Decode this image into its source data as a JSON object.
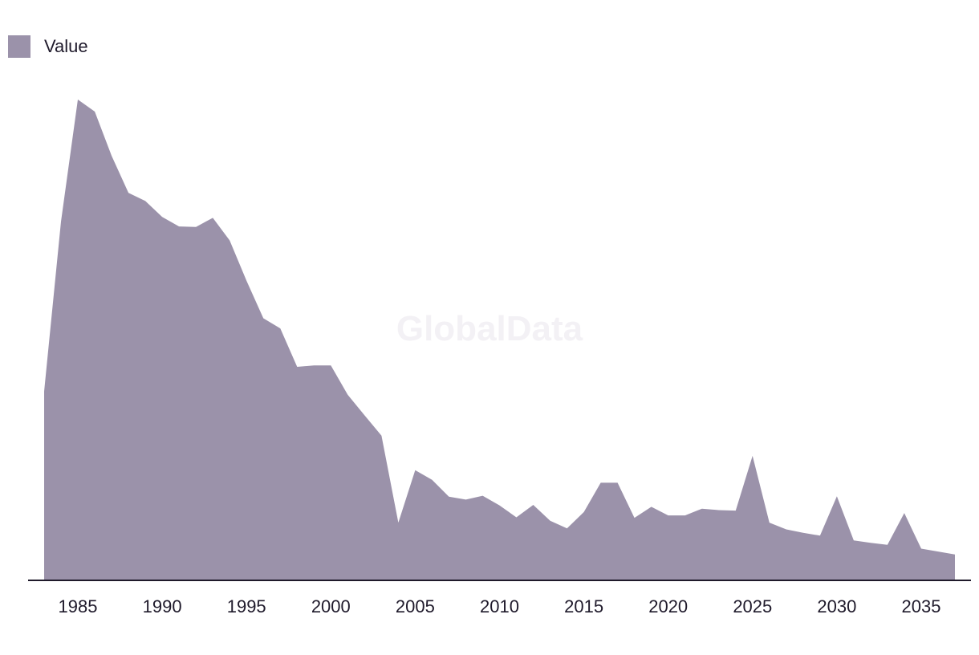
{
  "legend": {
    "label": "Value",
    "color": "#9b92aa"
  },
  "watermark": "GlobalData",
  "chart_data": {
    "type": "area",
    "xlim": [
      1983,
      2037
    ],
    "ylim": [
      0,
      100
    ],
    "xticks": [
      1985,
      1990,
      1995,
      2000,
      2005,
      2010,
      2015,
      2020,
      2025,
      2030,
      2035
    ],
    "series": [
      {
        "name": "Value",
        "color": "#9b92aa",
        "points": [
          [
            1983,
            39.3
          ],
          [
            1984,
            74.6
          ],
          [
            1985,
            100
          ],
          [
            1986,
            97.5
          ],
          [
            1987,
            88.3
          ],
          [
            1988,
            80.6
          ],
          [
            1989,
            78.9
          ],
          [
            1990,
            75.6
          ],
          [
            1991,
            73.6
          ],
          [
            1992,
            73.5
          ],
          [
            1993,
            75.4
          ],
          [
            1994,
            70.7
          ],
          [
            1995,
            62.3
          ],
          [
            1996,
            54.5
          ],
          [
            1997,
            52.4
          ],
          [
            1998,
            44.4
          ],
          [
            1999,
            44.7
          ],
          [
            2000,
            44.7
          ],
          [
            2001,
            38.6
          ],
          [
            2002,
            34.3
          ],
          [
            2003,
            30.1
          ],
          [
            2004,
            12.0
          ],
          [
            2005,
            22.9
          ],
          [
            2006,
            20.9
          ],
          [
            2007,
            17.4
          ],
          [
            2008,
            16.8
          ],
          [
            2009,
            17.6
          ],
          [
            2010,
            15.6
          ],
          [
            2011,
            13.1
          ],
          [
            2012,
            15.7
          ],
          [
            2013,
            12.4
          ],
          [
            2014,
            10.8
          ],
          [
            2015,
            14.2
          ],
          [
            2016,
            20.3
          ],
          [
            2017,
            20.3
          ],
          [
            2018,
            13.0
          ],
          [
            2019,
            15.3
          ],
          [
            2020,
            13.5
          ],
          [
            2021,
            13.5
          ],
          [
            2022,
            14.9
          ],
          [
            2023,
            14.6
          ],
          [
            2024,
            14.5
          ],
          [
            2025,
            25.9
          ],
          [
            2026,
            12.0
          ],
          [
            2027,
            10.6
          ],
          [
            2028,
            9.9
          ],
          [
            2029,
            9.3
          ],
          [
            2030,
            17.5
          ],
          [
            2031,
            8.3
          ],
          [
            2032,
            7.8
          ],
          [
            2033,
            7.4
          ],
          [
            2034,
            14.0
          ],
          [
            2035,
            6.6
          ],
          [
            2036,
            6.0
          ],
          [
            2037,
            5.4
          ]
        ]
      }
    ]
  }
}
